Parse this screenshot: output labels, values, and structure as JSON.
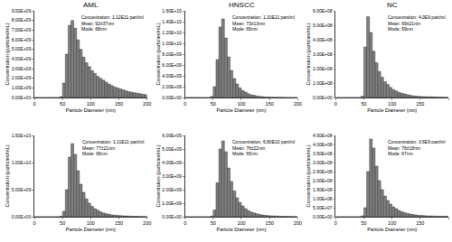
{
  "chart_data": [
    {
      "type": "histogram",
      "title": "AML",
      "x_label": "Particle Diameter (nm)",
      "y_label": "Concentration (particles/mL)",
      "annotations": [
        "Concentration: 1.12E11 part/ml",
        "Mean: 92±37nm",
        "Mode: 68nm"
      ],
      "color": "#808080",
      "grid": false,
      "bins": [
        0,
        5,
        10,
        15,
        20,
        25,
        30,
        35,
        40,
        45,
        50,
        55,
        60,
        65,
        70,
        75,
        80,
        85,
        90,
        95,
        100,
        105,
        110,
        115,
        120,
        125,
        130,
        135,
        140,
        145,
        150,
        155,
        160,
        165,
        170,
        175,
        180,
        185,
        190,
        195,
        200
      ],
      "values": [
        0,
        0,
        0,
        0,
        0,
        0,
        0,
        0,
        0,
        100000000.0,
        1500000000.0,
        4500000000.0,
        7500000000.0,
        8000000000.0,
        7200000000.0,
        6000000000.0,
        5000000000.0,
        4200000000.0,
        3600000000.0,
        3200000000.0,
        2800000000.0,
        2500000000.0,
        2200000000.0,
        2000000000.0,
        1800000000.0,
        1600000000.0,
        1400000000.0,
        1250000000.0,
        1100000000.0,
        1000000000.0,
        900000000.0,
        800000000.0,
        700000000.0,
        600000000.0,
        550000000.0,
        500000000.0,
        450000000.0,
        400000000.0,
        350000000.0,
        300000000.0
      ],
      "xlim": [
        0,
        200
      ],
      "xticks": [
        0,
        50,
        100,
        150,
        200
      ],
      "ylim": [
        0,
        9000000000.0
      ],
      "yticks": [
        {
          "value": 0,
          "label": "0.00E+00"
        },
        {
          "value": 1000000000.0,
          "label": "1.00E+09"
        },
        {
          "value": 2000000000.0,
          "label": "2.00E+09"
        },
        {
          "value": 3000000000.0,
          "label": "3.00E+09"
        },
        {
          "value": 4000000000.0,
          "label": "4.00E+09"
        },
        {
          "value": 5000000000.0,
          "label": "5.00E+09"
        },
        {
          "value": 6000000000.0,
          "label": "6.00E+09"
        },
        {
          "value": 7000000000.0,
          "label": "7.00E+09"
        },
        {
          "value": 8000000000.0,
          "label": "8.00E+09"
        },
        {
          "value": 9000000000.0,
          "label": "9.00E+09"
        }
      ]
    },
    {
      "type": "histogram",
      "title": "HNSCC",
      "x_label": "Particle Diameter (nm)",
      "y_label": "Concentration (particles/mL)",
      "annotations": [
        "Concentration: 1.10E11 part/ml",
        "Mean: 73±13nm",
        "Mode: 65nm"
      ],
      "color": "#808080",
      "grid": false,
      "bins": [
        0,
        5,
        10,
        15,
        20,
        25,
        30,
        35,
        40,
        45,
        50,
        55,
        60,
        65,
        70,
        75,
        80,
        85,
        90,
        95,
        100,
        105,
        110,
        115,
        120,
        125,
        130,
        135,
        140,
        145,
        150,
        155,
        160,
        165,
        170,
        175,
        180,
        185,
        190,
        195,
        200
      ],
      "values": [
        0,
        0,
        0,
        0,
        0,
        0,
        0,
        0,
        0,
        200000000.0,
        2000000000.0,
        7000000000.0,
        13000000000.0,
        14500000000.0,
        11000000000.0,
        7500000000.0,
        5000000000.0,
        3500000000.0,
        2500000000.0,
        1800000000.0,
        1300000000.0,
        1000000000.0,
        700000000.0,
        500000000.0,
        400000000.0,
        300000000.0,
        200000000.0,
        150000000.0,
        100000000.0,
        80000000.0,
        60000000.0,
        50000000.0,
        40000000.0,
        30000000.0,
        30000000.0,
        20000000.0,
        20000000.0,
        10000000.0,
        10000000.0,
        10000000.0
      ],
      "xlim": [
        0,
        200
      ],
      "xticks": [
        0,
        50,
        100,
        150,
        200
      ],
      "ylim": [
        0,
        16000000000.0
      ],
      "yticks": [
        {
          "value": 0,
          "label": "0.00E+00"
        },
        {
          "value": 2000000000.0,
          "label": "2.00E+09"
        },
        {
          "value": 4000000000.0,
          "label": "4.00E+09"
        },
        {
          "value": 6000000000.0,
          "label": "6.00E+09"
        },
        {
          "value": 8000000000.0,
          "label": "8.00E+09"
        },
        {
          "value": 10000000000.0,
          "label": "1.00E+10"
        },
        {
          "value": 12000000000.0,
          "label": "1.20E+10"
        },
        {
          "value": 14000000000.0,
          "label": "1.40E+10"
        },
        {
          "value": 16000000000.0,
          "label": "1.60E+10"
        }
      ]
    },
    {
      "type": "histogram",
      "title": "NC",
      "x_label": "Particle Diameter (nm)",
      "y_label": "Concentration (particles/mL)",
      "annotations": [
        "Concentration: 4.0E9 part/ml",
        "Mean: 69±21nm",
        "Mode: 59nm"
      ],
      "color": "#808080",
      "grid": false,
      "bins": [
        0,
        5,
        10,
        15,
        20,
        25,
        30,
        35,
        40,
        45,
        50,
        55,
        60,
        65,
        70,
        75,
        80,
        85,
        90,
        95,
        100,
        105,
        110,
        115,
        120,
        125,
        130,
        135,
        140,
        145,
        150,
        155,
        160,
        165,
        170,
        175,
        180,
        185,
        190,
        195,
        200
      ],
      "values": [
        0,
        0,
        0,
        0,
        0,
        0,
        0,
        0,
        0,
        10000000.0,
        350000000.0,
        560000000.0,
        450000000.0,
        320000000.0,
        240000000.0,
        180000000.0,
        140000000.0,
        110000000.0,
        90000000.0,
        70000000.0,
        55000000.0,
        45000000.0,
        35000000.0,
        30000000.0,
        25000000.0,
        20000000.0,
        15000000.0,
        12000000.0,
        10000000.0,
        8000000.0,
        7000000.0,
        6000000.0,
        5000000.0,
        5000000.0,
        4000000.0,
        4000000.0,
        3000000.0,
        3000000.0,
        2000000.0,
        2000000.0
      ],
      "xlim": [
        0,
        200
      ],
      "xticks": [
        0,
        50,
        100,
        150,
        200
      ],
      "ylim": [
        0,
        600000000.0
      ],
      "yticks": [
        {
          "value": 0,
          "label": "0.00E+00"
        },
        {
          "value": 100000000.0,
          "label": "1.00E+08"
        },
        {
          "value": 200000000.0,
          "label": "2.00E+08"
        },
        {
          "value": 300000000.0,
          "label": "3.00E+08"
        },
        {
          "value": 400000000.0,
          "label": "4.00E+08"
        },
        {
          "value": 500000000.0,
          "label": "5.00E+08"
        },
        {
          "value": 600000000.0,
          "label": "6.00E+08"
        }
      ]
    },
    {
      "type": "histogram",
      "x_label": "Particle Diameter (nm)",
      "y_label": "Concentration (particles/mL)",
      "annotations": [
        "Concentration: 1.11E11 part/ml",
        "Mean: 77±21nm",
        "Mode: 66nm"
      ],
      "color": "#808080",
      "grid": false,
      "bins": [
        0,
        5,
        10,
        15,
        20,
        25,
        30,
        35,
        40,
        45,
        50,
        55,
        60,
        65,
        70,
        75,
        80,
        85,
        90,
        95,
        100,
        105,
        110,
        115,
        120,
        125,
        130,
        135,
        140,
        145,
        150,
        155,
        160,
        165,
        170,
        175,
        180,
        185,
        190,
        195,
        200
      ],
      "values": [
        0,
        0,
        0,
        0,
        0,
        0,
        0,
        0,
        0,
        100000000.0,
        1000000000.0,
        5000000000.0,
        11000000000.0,
        13500000000.0,
        11500000000.0,
        8500000000.0,
        6000000000.0,
        4500000000.0,
        3300000000.0,
        2500000000.0,
        1900000000.0,
        1500000000.0,
        1200000000.0,
        900000000.0,
        700000000.0,
        550000000.0,
        450000000.0,
        350000000.0,
        300000000.0,
        250000000.0,
        200000000.0,
        170000000.0,
        150000000.0,
        120000000.0,
        100000000.0,
        80000000.0,
        70000000.0,
        60000000.0,
        50000000.0,
        40000000.0
      ],
      "xlim": [
        0,
        200
      ],
      "xticks": [
        0,
        50,
        100,
        150,
        200
      ],
      "ylim": [
        0,
        15000000000.0
      ],
      "yticks": [
        {
          "value": 0,
          "label": "0.00E+00"
        },
        {
          "value": 5000000000.0,
          "label": "5.00E+09"
        },
        {
          "value": 10000000000.0,
          "label": "1.00E+10"
        },
        {
          "value": 15000000000.0,
          "label": "1.50E+10"
        }
      ]
    },
    {
      "type": "histogram",
      "x_label": "Particle Diameter (nm)",
      "y_label": "Concentration (particles/mL)",
      "annotations": [
        "Concentration: 6.80E10 part/ml",
        "Mean: 76±22nm",
        "Mode: 65nm"
      ],
      "color": "#808080",
      "grid": false,
      "bins": [
        0,
        5,
        10,
        15,
        20,
        25,
        30,
        35,
        40,
        45,
        50,
        55,
        60,
        65,
        70,
        75,
        80,
        85,
        90,
        95,
        100,
        105,
        110,
        115,
        120,
        125,
        130,
        135,
        140,
        145,
        150,
        155,
        160,
        165,
        170,
        175,
        180,
        185,
        190,
        195,
        200
      ],
      "values": [
        0,
        0,
        0,
        0,
        0,
        0,
        0,
        0,
        0,
        50000000.0,
        500000000.0,
        2500000000.0,
        5000000000.0,
        5600000000.0,
        4800000000.0,
        3600000000.0,
        2600000000.0,
        1900000000.0,
        1400000000.0,
        1050000000.0,
        800000000.0,
        600000000.0,
        450000000.0,
        350000000.0,
        280000000.0,
        220000000.0,
        170000000.0,
        130000000.0,
        100000000.0,
        80000000.0,
        70000000.0,
        60000000.0,
        50000000.0,
        40000000.0,
        30000000.0,
        30000000.0,
        20000000.0,
        20000000.0,
        10000000.0,
        10000000.0
      ],
      "xlim": [
        0,
        200
      ],
      "xticks": [
        0,
        50,
        100,
        150,
        200
      ],
      "ylim": [
        0,
        6000000000.0
      ],
      "yticks": [
        {
          "value": 0,
          "label": "0.00E+00"
        },
        {
          "value": 1000000000.0,
          "label": "1.00E+09"
        },
        {
          "value": 2000000000.0,
          "label": "2.00E+09"
        },
        {
          "value": 3000000000.0,
          "label": "3.00E+09"
        },
        {
          "value": 4000000000.0,
          "label": "4.00E+09"
        },
        {
          "value": 5000000000.0,
          "label": "5.00E+09"
        },
        {
          "value": 6000000000.0,
          "label": "6.00E+09"
        }
      ]
    },
    {
      "type": "histogram",
      "x_label": "Particle Diameter (nm)",
      "y_label": "Concentration (particles/mL)",
      "annotations": [
        "Concentration: 3.6E9 part/ml",
        "Mean: 76±18nm",
        "Mode: 67nm"
      ],
      "color": "#808080",
      "grid": false,
      "bins": [
        0,
        5,
        10,
        15,
        20,
        25,
        30,
        35,
        40,
        45,
        50,
        55,
        60,
        65,
        70,
        75,
        80,
        85,
        90,
        95,
        100,
        105,
        110,
        115,
        120,
        125,
        130,
        135,
        140,
        145,
        150,
        155,
        160,
        165,
        170,
        175,
        180,
        185,
        190,
        195,
        200
      ],
      "values": [
        0,
        0,
        0,
        0,
        0,
        0,
        0,
        0,
        0,
        5000000.0,
        50000000.0,
        250000000.0,
        430000000.0,
        380000000.0,
        280000000.0,
        200000000.0,
        150000000.0,
        115000000.0,
        90000000.0,
        70000000.0,
        55000000.0,
        45000000.0,
        35000000.0,
        28000000.0,
        22000000.0,
        18000000.0,
        15000000.0,
        12000000.0,
        10000000.0,
        8000000.0,
        7000000.0,
        6000000.0,
        5000000.0,
        5000000.0,
        4000000.0,
        4000000.0,
        3000000.0,
        3000000.0,
        2000000.0,
        2000000.0
      ],
      "xlim": [
        0,
        200
      ],
      "xticks": [
        0,
        50,
        100,
        150,
        200
      ],
      "ylim": [
        0,
        450000000.0
      ],
      "yticks": [
        {
          "value": 0,
          "label": "0.00E+00"
        },
        {
          "value": 50000000.0,
          "label": "5.00E+07"
        },
        {
          "value": 100000000.0,
          "label": "1.00E+08"
        },
        {
          "value": 150000000.0,
          "label": "1.50E+08"
        },
        {
          "value": 200000000.0,
          "label": "2.00E+08"
        },
        {
          "value": 250000000.0,
          "label": "2.50E+08"
        },
        {
          "value": 300000000.0,
          "label": "3.00E+08"
        },
        {
          "value": 350000000.0,
          "label": "3.50E+08"
        },
        {
          "value": 400000000.0,
          "label": "4.00E+08"
        },
        {
          "value": 450000000.0,
          "label": "4.50E+08"
        }
      ]
    }
  ]
}
